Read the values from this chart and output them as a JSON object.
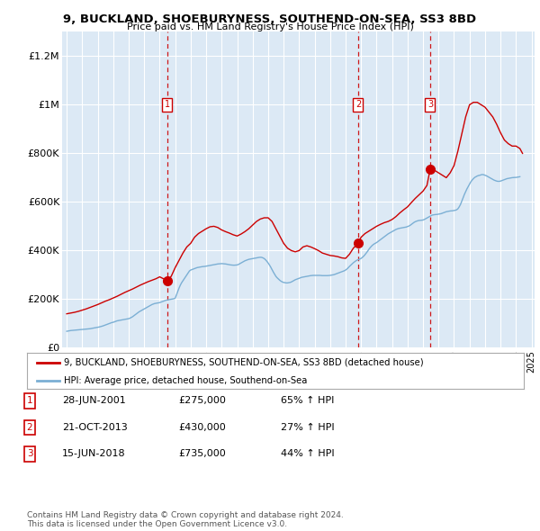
{
  "title": "9, BUCKLAND, SHOEBURYNESS, SOUTHEND-ON-SEA, SS3 8BD",
  "subtitle": "Price paid vs. HM Land Registry's House Price Index (HPI)",
  "bg_color": "#dce9f5",
  "sale_color": "#cc0000",
  "hpi_color": "#7bafd4",
  "ylim": [
    0,
    1300000
  ],
  "yticks": [
    0,
    200000,
    400000,
    600000,
    800000,
    1000000,
    1200000
  ],
  "ytick_labels": [
    "£0",
    "£200K",
    "£400K",
    "£600K",
    "£800K",
    "£1M",
    "£1.2M"
  ],
  "sales": [
    {
      "date": 2001.49,
      "price": 275000,
      "label": "1"
    },
    {
      "date": 2013.81,
      "price": 430000,
      "label": "2"
    },
    {
      "date": 2018.46,
      "price": 735000,
      "label": "3"
    }
  ],
  "legend_sale_label": "9, BUCKLAND, SHOEBURYNESS, SOUTHEND-ON-SEA, SS3 8BD (detached house)",
  "legend_hpi_label": "HPI: Average price, detached house, Southend-on-Sea",
  "table_rows": [
    {
      "num": "1",
      "date": "28-JUN-2001",
      "price": "£275,000",
      "change": "65% ↑ HPI"
    },
    {
      "num": "2",
      "date": "21-OCT-2013",
      "price": "£430,000",
      "change": "27% ↑ HPI"
    },
    {
      "num": "3",
      "date": "15-JUN-2018",
      "price": "£735,000",
      "change": "44% ↑ HPI"
    }
  ],
  "footer": "Contains HM Land Registry data © Crown copyright and database right 2024.\nThis data is licensed under the Open Government Licence v3.0.",
  "hpi_years": [
    1995.0,
    1995.083,
    1995.167,
    1995.25,
    1995.333,
    1995.417,
    1995.5,
    1995.583,
    1995.667,
    1995.75,
    1995.833,
    1995.917,
    1996.0,
    1996.083,
    1996.167,
    1996.25,
    1996.333,
    1996.417,
    1996.5,
    1996.583,
    1996.667,
    1996.75,
    1996.833,
    1996.917,
    1997.0,
    1997.083,
    1997.167,
    1997.25,
    1997.333,
    1997.417,
    1997.5,
    1997.583,
    1997.667,
    1997.75,
    1997.833,
    1997.917,
    1998.0,
    1998.083,
    1998.167,
    1998.25,
    1998.333,
    1998.417,
    1998.5,
    1998.583,
    1998.667,
    1998.75,
    1998.833,
    1998.917,
    1999.0,
    1999.083,
    1999.167,
    1999.25,
    1999.333,
    1999.417,
    1999.5,
    1999.583,
    1999.667,
    1999.75,
    1999.833,
    1999.917,
    2000.0,
    2000.083,
    2000.167,
    2000.25,
    2000.333,
    2000.417,
    2000.5,
    2000.583,
    2000.667,
    2000.75,
    2000.833,
    2000.917,
    2001.0,
    2001.083,
    2001.167,
    2001.25,
    2001.333,
    2001.417,
    2001.5,
    2001.583,
    2001.667,
    2001.75,
    2001.833,
    2001.917,
    2002.0,
    2002.083,
    2002.167,
    2002.25,
    2002.333,
    2002.417,
    2002.5,
    2002.583,
    2002.667,
    2002.75,
    2002.833,
    2002.917,
    2003.0,
    2003.083,
    2003.167,
    2003.25,
    2003.333,
    2003.417,
    2003.5,
    2003.583,
    2003.667,
    2003.75,
    2003.833,
    2003.917,
    2004.0,
    2004.083,
    2004.167,
    2004.25,
    2004.333,
    2004.417,
    2004.5,
    2004.583,
    2004.667,
    2004.75,
    2004.833,
    2004.917,
    2005.0,
    2005.083,
    2005.167,
    2005.25,
    2005.333,
    2005.417,
    2005.5,
    2005.583,
    2005.667,
    2005.75,
    2005.833,
    2005.917,
    2006.0,
    2006.083,
    2006.167,
    2006.25,
    2006.333,
    2006.417,
    2006.5,
    2006.583,
    2006.667,
    2006.75,
    2006.833,
    2006.917,
    2007.0,
    2007.083,
    2007.167,
    2007.25,
    2007.333,
    2007.417,
    2007.5,
    2007.583,
    2007.667,
    2007.75,
    2007.833,
    2007.917,
    2008.0,
    2008.083,
    2008.167,
    2008.25,
    2008.333,
    2008.417,
    2008.5,
    2008.583,
    2008.667,
    2008.75,
    2008.833,
    2008.917,
    2009.0,
    2009.083,
    2009.167,
    2009.25,
    2009.333,
    2009.417,
    2009.5,
    2009.583,
    2009.667,
    2009.75,
    2009.833,
    2009.917,
    2010.0,
    2010.083,
    2010.167,
    2010.25,
    2010.333,
    2010.417,
    2010.5,
    2010.583,
    2010.667,
    2010.75,
    2010.833,
    2010.917,
    2011.0,
    2011.083,
    2011.167,
    2011.25,
    2011.333,
    2011.417,
    2011.5,
    2011.583,
    2011.667,
    2011.75,
    2011.833,
    2011.917,
    2012.0,
    2012.083,
    2012.167,
    2012.25,
    2012.333,
    2012.417,
    2012.5,
    2012.583,
    2012.667,
    2012.75,
    2012.833,
    2012.917,
    2013.0,
    2013.083,
    2013.167,
    2013.25,
    2013.333,
    2013.417,
    2013.5,
    2013.583,
    2013.667,
    2013.75,
    2013.833,
    2013.917,
    2014.0,
    2014.083,
    2014.167,
    2014.25,
    2014.333,
    2014.417,
    2014.5,
    2014.583,
    2014.667,
    2014.75,
    2014.833,
    2014.917,
    2015.0,
    2015.083,
    2015.167,
    2015.25,
    2015.333,
    2015.417,
    2015.5,
    2015.583,
    2015.667,
    2015.75,
    2015.833,
    2015.917,
    2016.0,
    2016.083,
    2016.167,
    2016.25,
    2016.333,
    2016.417,
    2016.5,
    2016.583,
    2016.667,
    2016.75,
    2016.833,
    2016.917,
    2017.0,
    2017.083,
    2017.167,
    2017.25,
    2017.333,
    2017.417,
    2017.5,
    2017.583,
    2017.667,
    2017.75,
    2017.833,
    2017.917,
    2018.0,
    2018.083,
    2018.167,
    2018.25,
    2018.333,
    2018.417,
    2018.5,
    2018.583,
    2018.667,
    2018.75,
    2018.833,
    2018.917,
    2019.0,
    2019.083,
    2019.167,
    2019.25,
    2019.333,
    2019.417,
    2019.5,
    2019.583,
    2019.667,
    2019.75,
    2019.833,
    2019.917,
    2020.0,
    2020.083,
    2020.167,
    2020.25,
    2020.333,
    2020.417,
    2020.5,
    2020.583,
    2020.667,
    2020.75,
    2020.833,
    2020.917,
    2021.0,
    2021.083,
    2021.167,
    2021.25,
    2021.333,
    2021.417,
    2021.5,
    2021.583,
    2021.667,
    2021.75,
    2021.833,
    2021.917,
    2022.0,
    2022.083,
    2022.167,
    2022.25,
    2022.333,
    2022.417,
    2022.5,
    2022.583,
    2022.667,
    2022.75,
    2022.833,
    2022.917,
    2023.0,
    2023.083,
    2023.167,
    2023.25,
    2023.333,
    2023.417,
    2023.5,
    2023.583,
    2023.667,
    2023.75,
    2023.833,
    2023.917,
    2024.0,
    2024.083,
    2024.167,
    2024.25
  ],
  "hpi_values": [
    68000,
    69000,
    70000,
    71000,
    71500,
    72000,
    72500,
    73000,
    73500,
    74000,
    74500,
    75000,
    75500,
    76000,
    76500,
    77000,
    77500,
    78000,
    78500,
    79500,
    80500,
    81500,
    82500,
    83500,
    84500,
    85500,
    87000,
    88500,
    90000,
    92000,
    94000,
    96000,
    98000,
    100000,
    102000,
    104000,
    105000,
    107000,
    109000,
    111000,
    112000,
    113000,
    114000,
    115000,
    116000,
    117000,
    118000,
    119000,
    120000,
    122000,
    125000,
    128000,
    132000,
    136000,
    140000,
    144000,
    148000,
    151000,
    154000,
    157000,
    160000,
    163000,
    166000,
    169000,
    172000,
    175000,
    178000,
    180000,
    182000,
    183000,
    184000,
    185000,
    186000,
    188000,
    190000,
    192000,
    194000,
    196000,
    197000,
    198000,
    199000,
    200000,
    201000,
    202000,
    204000,
    218000,
    232000,
    246000,
    258000,
    268000,
    276000,
    284000,
    292000,
    300000,
    308000,
    316000,
    320000,
    322000,
    324000,
    326000,
    328000,
    330000,
    331000,
    332000,
    333000,
    334000,
    334500,
    335000,
    336000,
    337000,
    338000,
    339000,
    340000,
    341000,
    342000,
    343000,
    344000,
    345000,
    345500,
    346000,
    346500,
    346000,
    345500,
    345000,
    344000,
    343000,
    342000,
    341000,
    340500,
    340000,
    340000,
    340500,
    341000,
    343000,
    346000,
    349000,
    352000,
    355000,
    358000,
    360000,
    362000,
    364000,
    365000,
    366000,
    367000,
    368000,
    369000,
    370000,
    371000,
    372000,
    372500,
    372000,
    370000,
    367000,
    362000,
    356000,
    349000,
    341000,
    332000,
    322000,
    312000,
    303000,
    294000,
    288000,
    283000,
    278000,
    274000,
    271000,
    269000,
    268000,
    267000,
    267000,
    268000,
    269000,
    271000,
    274000,
    277000,
    280000,
    282000,
    284000,
    286000,
    288000,
    290000,
    291000,
    292000,
    293000,
    294000,
    295000,
    296000,
    297000,
    297500,
    298000,
    298000,
    298000,
    298000,
    298000,
    298000,
    297500,
    297000,
    297000,
    297000,
    297000,
    297000,
    297500,
    298000,
    299000,
    300000,
    301000,
    303000,
    305000,
    307000,
    309000,
    311000,
    313000,
    315000,
    317000,
    320000,
    324000,
    329000,
    335000,
    340000,
    345000,
    350000,
    354000,
    358000,
    361000,
    363000,
    365000,
    368000,
    372000,
    377000,
    383000,
    390000,
    397000,
    405000,
    412000,
    418000,
    423000,
    427000,
    430000,
    433000,
    437000,
    441000,
    445000,
    449000,
    453000,
    457000,
    461000,
    465000,
    469000,
    472000,
    475000,
    478000,
    481000,
    484000,
    487000,
    489000,
    491000,
    492000,
    493000,
    494000,
    495000,
    496000,
    497000,
    499000,
    501000,
    504000,
    508000,
    512000,
    516000,
    519000,
    521000,
    523000,
    524000,
    524500,
    525000,
    526000,
    528000,
    531000,
    534000,
    537000,
    540000,
    543000,
    546000,
    547000,
    548000,
    548500,
    549000,
    550000,
    551000,
    552000,
    554000,
    556000,
    558000,
    560000,
    561000,
    562000,
    563000,
    563500,
    564000,
    565000,
    566000,
    568000,
    572000,
    580000,
    590000,
    603000,
    617000,
    631000,
    643000,
    654000,
    664000,
    674000,
    683000,
    690000,
    696000,
    701000,
    704000,
    707000,
    709000,
    710000,
    712000,
    713000,
    712000,
    710000,
    708000,
    705000,
    702000,
    699000,
    696000,
    693000,
    690000,
    688000,
    686000,
    685000,
    685000,
    686000,
    688000,
    690000,
    692000,
    694000,
    696000,
    697000,
    698000,
    699000,
    700000,
    700500,
    701000,
    701000,
    702000,
    703000,
    704000
  ],
  "sale_years": [
    1995.0,
    1995.25,
    1995.5,
    1995.75,
    1996.0,
    1996.25,
    1996.5,
    1996.75,
    1997.0,
    1997.25,
    1997.5,
    1997.75,
    1998.0,
    1998.25,
    1998.5,
    1998.75,
    1999.0,
    1999.25,
    1999.5,
    1999.75,
    2000.0,
    2000.25,
    2000.5,
    2000.75,
    2001.0,
    2001.25,
    2001.49,
    2001.75,
    2002.0,
    2002.25,
    2002.5,
    2002.75,
    2003.0,
    2003.25,
    2003.5,
    2003.75,
    2004.0,
    2004.25,
    2004.5,
    2004.75,
    2005.0,
    2005.25,
    2005.5,
    2005.75,
    2006.0,
    2006.25,
    2006.5,
    2006.75,
    2007.0,
    2007.25,
    2007.5,
    2007.75,
    2008.0,
    2008.25,
    2008.5,
    2008.75,
    2009.0,
    2009.25,
    2009.5,
    2009.75,
    2010.0,
    2010.25,
    2010.5,
    2010.75,
    2011.0,
    2011.25,
    2011.5,
    2011.75,
    2012.0,
    2012.25,
    2012.5,
    2012.75,
    2013.0,
    2013.25,
    2013.5,
    2013.81,
    2014.0,
    2014.25,
    2014.5,
    2014.75,
    2015.0,
    2015.25,
    2015.5,
    2015.75,
    2016.0,
    2016.25,
    2016.5,
    2016.75,
    2017.0,
    2017.25,
    2017.5,
    2017.75,
    2018.0,
    2018.25,
    2018.46,
    2018.75,
    2019.0,
    2019.25,
    2019.5,
    2019.75,
    2020.0,
    2020.25,
    2020.5,
    2020.75,
    2021.0,
    2021.25,
    2021.5,
    2021.75,
    2022.0,
    2022.25,
    2022.5,
    2022.75,
    2023.0,
    2023.25,
    2023.5,
    2023.75,
    2024.0,
    2024.25,
    2024.42
  ],
  "sale_values": [
    140000,
    143000,
    146000,
    150000,
    155000,
    160000,
    166000,
    172000,
    178000,
    185000,
    192000,
    198000,
    205000,
    212000,
    220000,
    228000,
    235000,
    242000,
    250000,
    258000,
    265000,
    272000,
    278000,
    284000,
    292000,
    284000,
    275000,
    295000,
    330000,
    360000,
    390000,
    415000,
    430000,
    455000,
    470000,
    480000,
    490000,
    498000,
    500000,
    495000,
    485000,
    478000,
    472000,
    465000,
    460000,
    468000,
    478000,
    490000,
    505000,
    520000,
    530000,
    535000,
    535000,
    520000,
    490000,
    460000,
    430000,
    410000,
    400000,
    395000,
    400000,
    415000,
    420000,
    415000,
    408000,
    400000,
    390000,
    385000,
    380000,
    378000,
    375000,
    370000,
    368000,
    385000,
    410000,
    430000,
    455000,
    470000,
    480000,
    490000,
    500000,
    508000,
    515000,
    520000,
    528000,
    540000,
    555000,
    568000,
    580000,
    598000,
    615000,
    630000,
    645000,
    668000,
    735000,
    730000,
    720000,
    710000,
    700000,
    720000,
    750000,
    810000,
    880000,
    950000,
    1000000,
    1010000,
    1010000,
    1000000,
    990000,
    970000,
    950000,
    920000,
    885000,
    855000,
    840000,
    830000,
    830000,
    820000,
    800000
  ]
}
